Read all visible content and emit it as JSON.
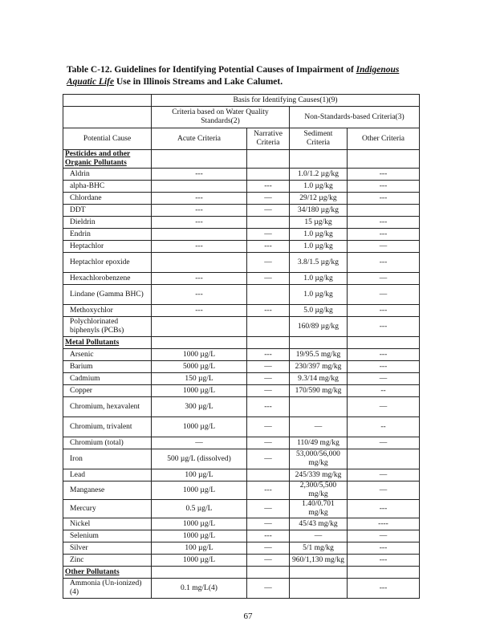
{
  "title": {
    "prefix": "Table C-12.  Guidelines for Identifying Potential Causes of Impairment of ",
    "italic_underlined": "Indigenous Aquatic Life",
    "suffix": " Use in Illinois Streams and Lake Calumet."
  },
  "header": {
    "basis": "Basis for Identifying Causes(1)(9)",
    "wq_group": "Criteria based on Water Quality Standards(2)",
    "nonstd_group": "Non-Standards-based Criteria(3)",
    "columns": [
      "Potential Cause",
      "Acute Criteria",
      "Narrative Criteria",
      "Sediment Criteria",
      "Other Criteria"
    ]
  },
  "sections": [
    {
      "title": "Pesticides and other Organic Pollutants",
      "rows": [
        [
          "Aldrin",
          "---",
          "",
          "1.0/1.2 µg/kg",
          "---"
        ],
        [
          "alpha-BHC",
          "",
          "---",
          "1.0 µg/kg",
          "---"
        ],
        [
          "Chlordane",
          "---",
          "—",
          "29/12 µg/kg",
          "---"
        ],
        [
          "DDT",
          "---",
          "—",
          "34/180 µg/kg",
          ""
        ],
        [
          "Dieldrin",
          "---",
          "",
          "15 µg/kg",
          "---"
        ],
        [
          "Endrin",
          "",
          "—",
          "1.0 µg/kg",
          "---"
        ],
        [
          "Heptachlor",
          "---",
          "---",
          "1.0 µg/kg",
          "—"
        ],
        [
          "Heptachlor epoxide",
          "",
          "—",
          "3.8/1.5 µg/kg",
          "---"
        ],
        [
          "Hexachlorobenzene",
          "---",
          "—",
          "1.0 µg/kg",
          "—"
        ],
        [
          "Lindane (Gamma BHC)",
          "---",
          "",
          "1.0 µg/kg",
          "—"
        ],
        [
          "Methoxychlor",
          "---",
          "---",
          "5.0 µg/kg",
          "---"
        ],
        [
          "Polychlorinated biphenyls (PCBs)",
          "",
          "",
          "160/89 µg/kg",
          "---"
        ]
      ]
    },
    {
      "title": "Metal Pollutants",
      "rows": [
        [
          "Arsenic",
          "1000 µg/L",
          "---",
          "19/95.5 mg/kg",
          "---"
        ],
        [
          "Barium",
          "5000 µg/L",
          "—",
          "230/397 mg/kg",
          "---"
        ],
        [
          "Cadmium",
          "150 µg/L",
          "—",
          "9.3/14 mg/kg",
          "—"
        ],
        [
          "Copper",
          "1000 µg/L",
          "—",
          "170/590 mg/kg",
          "--"
        ],
        [
          "Chromium, hexavalent",
          "300 µg/L",
          "---",
          "",
          "—"
        ],
        [
          "Chromium, trivalent",
          "1000 µg/L",
          "—",
          "—",
          "--"
        ],
        [
          "Chromium (total)",
          "—",
          "—",
          "110/49 mg/kg",
          "—"
        ],
        [
          "Iron",
          "500 µg/L (dissolved)",
          "—",
          "53,000/56,000 mg/kg",
          ""
        ],
        [
          "Lead",
          "100 µg/L",
          "",
          "245/339 mg/kg",
          "—"
        ],
        [
          "Manganese",
          "1000 µg/L",
          "---",
          "2,300/5,500 mg/kg",
          "—"
        ],
        [
          "Mercury",
          "0.5 µg/L",
          "—",
          "1.40/0.701 mg/kg",
          "---"
        ],
        [
          "Nickel",
          "1000 µg/L",
          "—",
          "45/43 mg/kg",
          "----"
        ],
        [
          "Selenium",
          "1000 µg/L",
          "---",
          "—",
          "—"
        ],
        [
          "Silver",
          "100 µg/L",
          "—",
          "5/1 mg/kg",
          "---"
        ],
        [
          "Zinc",
          "1000 µg/L",
          "—",
          "960/1,130 mg/kg",
          "---"
        ]
      ]
    },
    {
      "title": "Other Pollutants",
      "rows": [
        [
          "Ammonia (Un-ionized)(4)",
          "0.1 mg/L(4)",
          "—",
          "",
          "---"
        ]
      ]
    }
  ],
  "page_number": "67"
}
